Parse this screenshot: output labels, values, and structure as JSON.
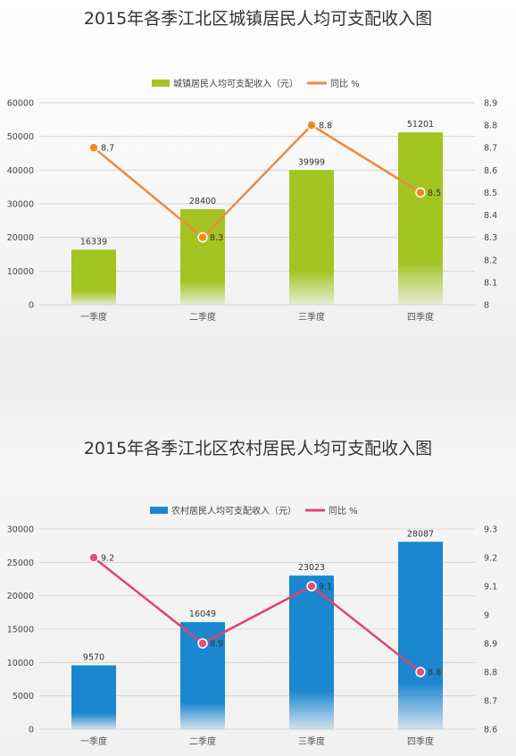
{
  "chart_data": [
    {
      "type": "bar",
      "title": "2015年各季江北区城镇居民人均可支配收入图",
      "categories": [
        "一季度",
        "二季度",
        "三季度",
        "四季度"
      ],
      "series": [
        {
          "name": "城镇居民人均可支配收入（元）",
          "type": "bar",
          "values": [
            16339,
            28400,
            39999,
            51201
          ],
          "color": "#a4c422"
        },
        {
          "name": "同比 %",
          "type": "line",
          "values": [
            8.7,
            8.3,
            8.8,
            8.5
          ],
          "color": "#ee8a3a",
          "marker_color": "#f08c1c"
        }
      ],
      "y_ticks": [
        "0",
        "10000",
        "20000",
        "30000",
        "40000",
        "50000",
        "60000"
      ],
      "ylim": [
        0,
        60000
      ],
      "y2_ticks": [
        "8",
        "8.1",
        "8.2",
        "8.3",
        "8.4",
        "8.5",
        "8.6",
        "8.7",
        "8.8",
        "8.9"
      ],
      "y2lim": [
        8.0,
        8.9
      ],
      "legend": "top-center",
      "grid": true
    },
    {
      "type": "bar",
      "title": "2015年各季江北区农村居民人均可支配收入图",
      "categories": [
        "一季度",
        "二季度",
        "三季度",
        "四季度"
      ],
      "series": [
        {
          "name": "农村居民人均可支配收入（元）",
          "type": "bar",
          "values": [
            9570,
            16049,
            23023,
            28087
          ],
          "color": "#1a87d0"
        },
        {
          "name": "同比 %",
          "type": "line",
          "values": [
            9.2,
            8.9,
            9.1,
            8.8
          ],
          "color": "#dc4470",
          "marker_color": "#e2507a"
        }
      ],
      "y_ticks": [
        "0",
        "5000",
        "10000",
        "15000",
        "20000",
        "25000",
        "30000"
      ],
      "ylim": [
        0,
        30000
      ],
      "y2_ticks": [
        "8.6",
        "8.7",
        "8.8",
        "8.9",
        "9",
        "9.1",
        "9.2",
        "9.3"
      ],
      "y2lim": [
        8.6,
        9.3
      ],
      "legend": "top-center",
      "grid": true
    }
  ]
}
